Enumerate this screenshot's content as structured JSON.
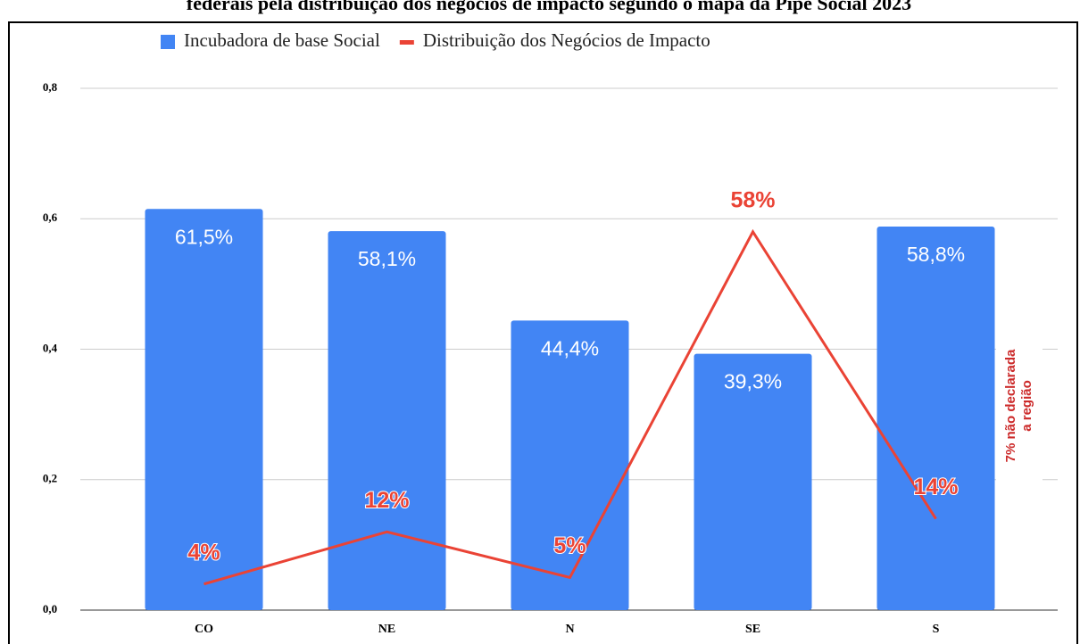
{
  "chart_data": {
    "type": "bar",
    "title": "federais pela distribuição dos negócios de impacto segundo o mapa da Pipe Social 2023",
    "categories": [
      "CO",
      "NE",
      "N",
      "SE",
      "S"
    ],
    "series": [
      {
        "name": "Incubadora de base Social",
        "type": "bar",
        "color": "#4285f4",
        "values": [
          0.615,
          0.581,
          0.444,
          0.393,
          0.588
        ],
        "value_labels": [
          "61,5%",
          "58,1%",
          "44,4%",
          "39,3%",
          "58,8%"
        ]
      },
      {
        "name": "Distribuição dos Negócios de Impacto",
        "type": "line",
        "color": "#ea4335",
        "values": [
          0.04,
          0.12,
          0.05,
          0.58,
          0.14
        ],
        "value_labels": [
          "4%",
          "12%",
          "5%",
          "58%",
          "14%"
        ]
      }
    ],
    "ylim": [
      0,
      0.8
    ],
    "yticks": [
      {
        "value": 0,
        "label": "0,0"
      },
      {
        "value": 0.2,
        "label": "0,2"
      },
      {
        "value": 0.4,
        "label": "0,4"
      },
      {
        "value": 0.6,
        "label": "0,6"
      },
      {
        "value": 0.8,
        "label": "0,8"
      }
    ],
    "grid": true,
    "legend": "top",
    "annotation_lines": [
      "7% não declarada",
      "a região"
    ]
  }
}
